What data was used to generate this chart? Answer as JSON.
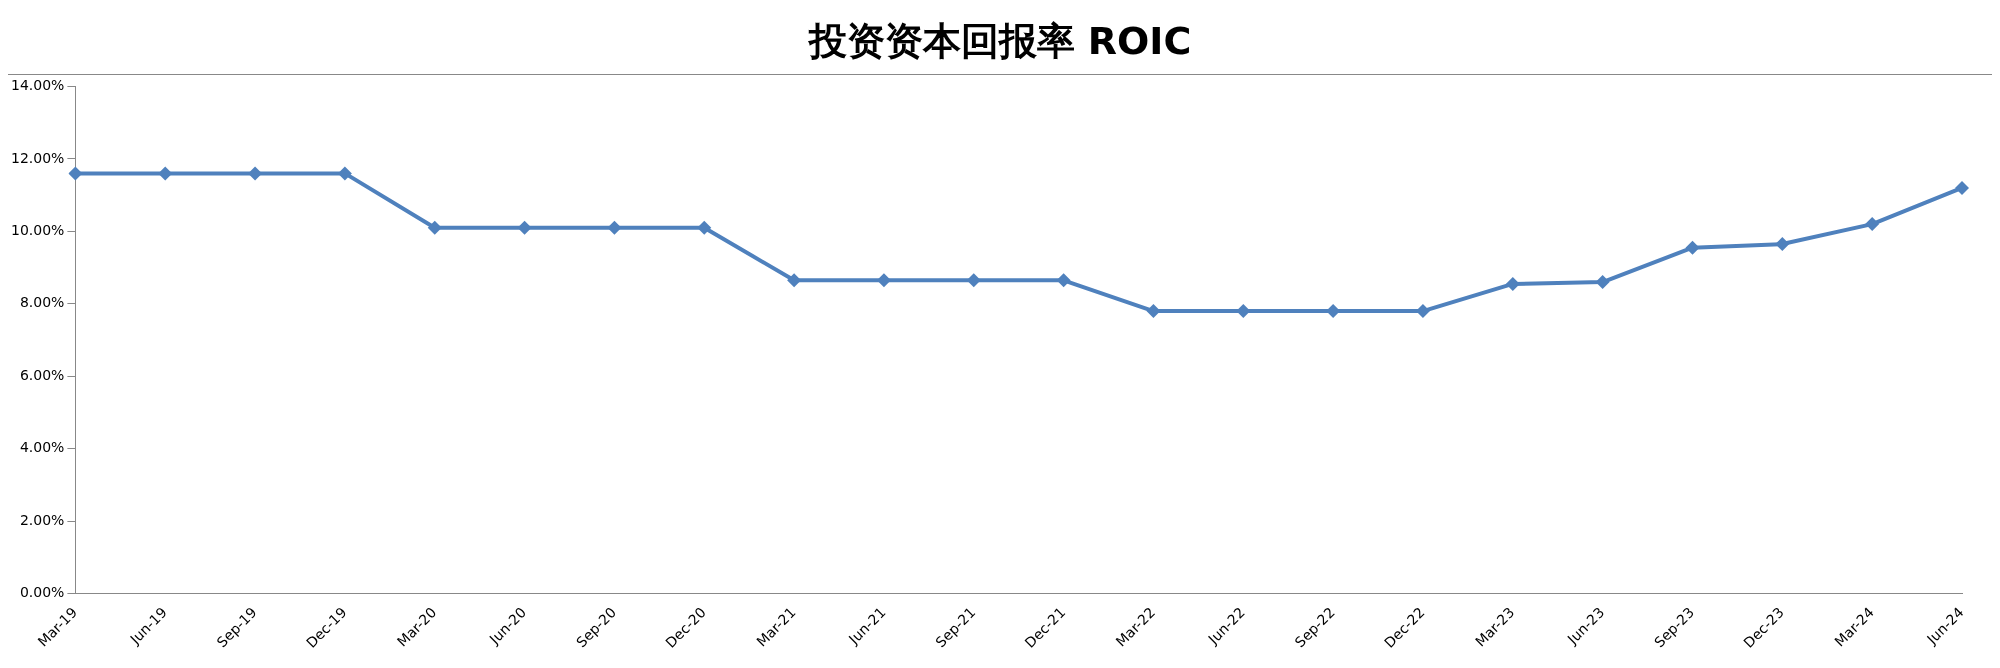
{
  "chart_data": {
    "type": "line",
    "title": "投资资本回报率 ROIC",
    "categories": [
      "Mar-19",
      "Jun-19",
      "Sep-19",
      "Dec-19",
      "Mar-20",
      "Jun-20",
      "Sep-20",
      "Dec-20",
      "Mar-21",
      "Jun-21",
      "Sep-21",
      "Dec-21",
      "Mar-22",
      "Jun-22",
      "Sep-22",
      "Dec-22",
      "Mar-23",
      "Jun-23",
      "Sep-23",
      "Dec-23",
      "Mar-24",
      "Jun-24"
    ],
    "series": [
      {
        "color": "#4f81bd",
        "values": [
          11.6,
          11.6,
          11.6,
          11.6,
          10.1,
          10.1,
          10.1,
          10.1,
          8.65,
          8.65,
          8.65,
          8.65,
          7.8,
          7.8,
          7.8,
          7.8,
          8.55,
          8.6,
          9.55,
          9.65,
          10.2,
          11.2
        ]
      }
    ],
    "ylim": [
      0,
      14
    ],
    "yticks": [
      {
        "value": 0,
        "label": "0.00%"
      },
      {
        "value": 2,
        "label": "2.00%"
      },
      {
        "value": 4,
        "label": "4.00%"
      },
      {
        "value": 6,
        "label": "6.00%"
      },
      {
        "value": 8,
        "label": "8.00%"
      },
      {
        "value": 10,
        "label": "10.00%"
      },
      {
        "value": 12,
        "label": "12.00%"
      },
      {
        "value": 14,
        "label": "14.00%"
      }
    ],
    "grid": false,
    "legend": false,
    "marker": "diamond",
    "line_style": "solid"
  }
}
